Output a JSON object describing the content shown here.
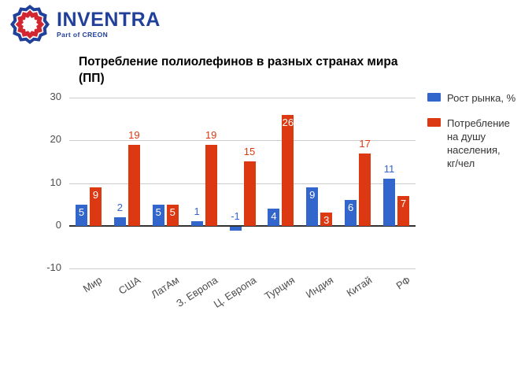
{
  "logo": {
    "name": "INVENTRA",
    "subtitle": "Part of CREON",
    "navy": "#21409A",
    "red": "#D22630"
  },
  "chart_data": {
    "type": "bar",
    "title": "Потребление полиолефинов в разных странах мира (ПП)",
    "title_lines": [
      "Потребление полиолефинов в разных странах мира",
      "(ПП)"
    ],
    "categories": [
      "Мир",
      "США",
      "ЛатАм",
      "З. Европа",
      "Ц. Европа",
      "Турция",
      "Индия",
      "Китай",
      "РФ"
    ],
    "series": [
      {
        "name": "Рост рынка, %",
        "color": "#3366CC",
        "values": [
          5,
          2,
          5,
          1,
          -1,
          4,
          9,
          6,
          11
        ],
        "label_pos": [
          "inside",
          "above",
          "inside",
          "above",
          "above",
          "inside",
          "inside",
          "inside",
          "above"
        ]
      },
      {
        "name": "Потребление на душу населения, кг/чел",
        "color": "#DC3912",
        "values": [
          9,
          19,
          5,
          19,
          15,
          26,
          3,
          17,
          7
        ],
        "label_pos": [
          "inside",
          "above",
          "inside",
          "above",
          "above",
          "inside",
          "inside",
          "above",
          "inside"
        ]
      }
    ],
    "ylim": [
      -10,
      30
    ],
    "yticks": [
      30,
      20,
      10,
      0,
      -10
    ],
    "grid": true,
    "legend_position": "right",
    "bar_label_color_inside": "#FFFFFF"
  },
  "legend": {
    "items": [
      {
        "lines": [
          "Рост рынка, %"
        ],
        "color": "#3366CC"
      },
      {
        "lines": [
          "Потребление",
          "на душу",
          "населения,",
          "кг/чел"
        ],
        "color": "#DC3912"
      }
    ]
  }
}
